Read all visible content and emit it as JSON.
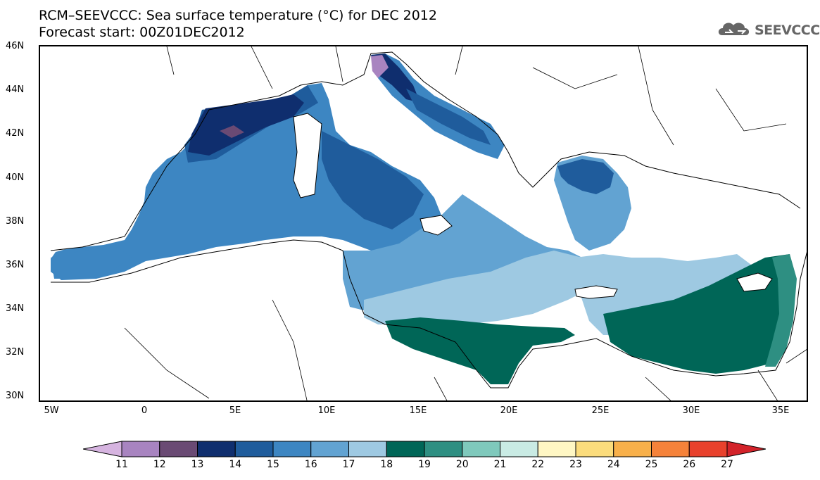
{
  "title": {
    "line1": "RCM–SEEVCCC: Sea surface temperature (°C) for DEC 2012",
    "line2": "Forecast start: 00Z01DEC2012"
  },
  "logo": {
    "text": "SEEVCCC",
    "icon": "cloud-icon"
  },
  "map": {
    "lat_labels": [
      "46N",
      "44N",
      "42N",
      "40N",
      "38N",
      "36N",
      "34N",
      "32N",
      "30N"
    ],
    "lon_labels": [
      "5W",
      "0",
      "5E",
      "10E",
      "15E",
      "20E",
      "25E",
      "30E",
      "35E"
    ],
    "colors": {
      "c11": "#d6b4e0",
      "c12": "#a884c0",
      "c13": "#6a4a74",
      "c14": "#0f2e6e",
      "c15": "#1f5c9c",
      "c16": "#3d86c2",
      "c17": "#62a3d2",
      "c18": "#9ec9e2",
      "c19": "#006657",
      "c20": "#2e8f82",
      "c21": "#7fc9bc",
      "c22": "#c9ebe4",
      "c23": "#fff7c4",
      "c24": "#fbdc7c",
      "c25": "#f8b04a",
      "c26": "#f5823a",
      "c27": "#e8412c",
      "land": "#ffffff",
      "coast": "#000000"
    }
  },
  "colorbar": {
    "labels": [
      "11",
      "12",
      "13",
      "14",
      "15",
      "16",
      "17",
      "18",
      "19",
      "20",
      "21",
      "22",
      "23",
      "24",
      "25",
      "26",
      "27"
    ],
    "colors": [
      "#d6b4e0",
      "#a884c0",
      "#6a4a74",
      "#0f2e6e",
      "#1f5c9c",
      "#3d86c2",
      "#62a3d2",
      "#9ec9e2",
      "#006657",
      "#2e8f82",
      "#7fc9bc",
      "#c9ebe4",
      "#fff7c4",
      "#fbdc7c",
      "#f8b04a",
      "#f5823a",
      "#e8412c",
      "#d3232a"
    ]
  }
}
